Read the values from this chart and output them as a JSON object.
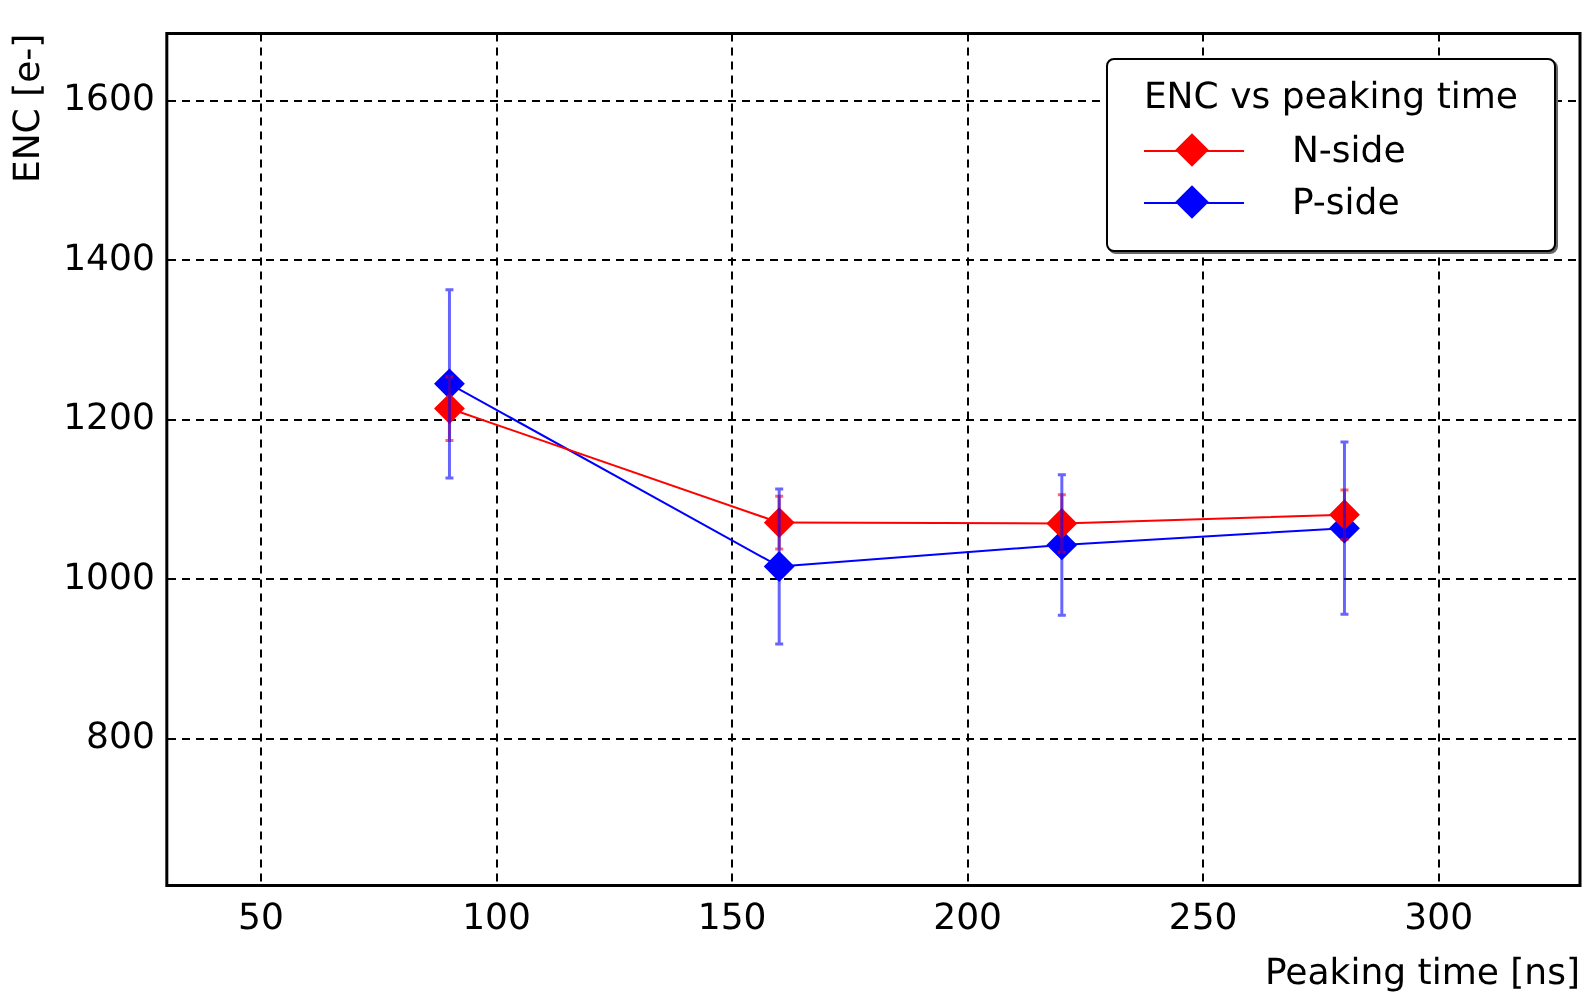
{
  "chart_data": {
    "type": "line",
    "xlabel": "Peaking time [ns]",
    "ylabel": "ENC [e-]",
    "legend_title": "ENC vs peaking time",
    "x": [
      90,
      160,
      220,
      280
    ],
    "series": [
      {
        "name": "N-side",
        "color": "#ff0000",
        "values": [
          1214,
          1071,
          1070,
          1081
        ],
        "errors": [
          40,
          33,
          36,
          31
        ]
      },
      {
        "name": "P-side",
        "color": "#0000ff",
        "values": [
          1245,
          1016,
          1043,
          1064
        ],
        "errors": [
          118,
          97,
          88,
          108
        ]
      }
    ],
    "xlim": [
      30,
      330
    ],
    "ylim": [
      616,
      1684
    ],
    "xticks": [
      50,
      100,
      150,
      200,
      250,
      300
    ],
    "yticks": [
      800,
      1000,
      1200,
      1400,
      1600
    ],
    "grid": true,
    "legend": "top right",
    "marker": "diamond",
    "line_style": "solid"
  }
}
